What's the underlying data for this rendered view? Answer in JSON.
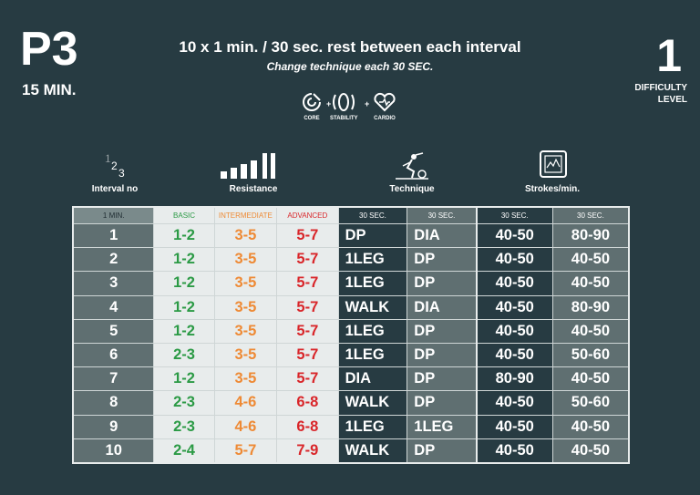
{
  "program": "P3",
  "duration": "15 MIN.",
  "headline": "10 x 1 min. / 30 sec. rest between each interval",
  "subline": "Change technique each 30 SEC.",
  "difficulty": {
    "level": "1",
    "label_line1": "DIFFICULTY",
    "label_line2": "LEVEL"
  },
  "categories": [
    {
      "name": "CORE",
      "icon": "core-icon"
    },
    {
      "name": "STABILITY",
      "icon": "stability-icon"
    },
    {
      "name": "CARDIO",
      "icon": "cardio-icon"
    }
  ],
  "plus": "+",
  "column_headers": {
    "interval": "Interval no",
    "resistance": "Resistance",
    "technique": "Technique",
    "strokes": "Strokes/min."
  },
  "table_headers": [
    "1 MIN.",
    "BASIC",
    "INTERMEDIATE",
    "ADVANCED",
    "30 SEC.",
    "30 SEC.",
    "30 SEC.",
    "30 SEC."
  ],
  "rows": [
    {
      "interval": "1",
      "basic": "1-2",
      "intermediate": "3-5",
      "advanced": "5-7",
      "tech1": "DP",
      "tech2": "DIA",
      "strokes1": "40-50",
      "strokes2": "80-90"
    },
    {
      "interval": "2",
      "basic": "1-2",
      "intermediate": "3-5",
      "advanced": "5-7",
      "tech1": "1LEG",
      "tech2": "DP",
      "strokes1": "40-50",
      "strokes2": "40-50"
    },
    {
      "interval": "3",
      "basic": "1-2",
      "intermediate": "3-5",
      "advanced": "5-7",
      "tech1": "1LEG",
      "tech2": "DP",
      "strokes1": "40-50",
      "strokes2": "40-50"
    },
    {
      "interval": "4",
      "basic": "1-2",
      "intermediate": "3-5",
      "advanced": "5-7",
      "tech1": "WALK",
      "tech2": "DIA",
      "strokes1": "40-50",
      "strokes2": "80-90"
    },
    {
      "interval": "5",
      "basic": "1-2",
      "intermediate": "3-5",
      "advanced": "5-7",
      "tech1": "1LEG",
      "tech2": "DP",
      "strokes1": "40-50",
      "strokes2": "40-50"
    },
    {
      "interval": "6",
      "basic": "2-3",
      "intermediate": "3-5",
      "advanced": "5-7",
      "tech1": "1LEG",
      "tech2": "DP",
      "strokes1": "40-50",
      "strokes2": "50-60"
    },
    {
      "interval": "7",
      "basic": "1-2",
      "intermediate": "3-5",
      "advanced": "5-7",
      "tech1": "DIA",
      "tech2": "DP",
      "strokes1": "80-90",
      "strokes2": "40-50"
    },
    {
      "interval": "8",
      "basic": "2-3",
      "intermediate": "4-6",
      "advanced": "6-8",
      "tech1": "WALK",
      "tech2": "DP",
      "strokes1": "40-50",
      "strokes2": "50-60"
    },
    {
      "interval": "9",
      "basic": "2-3",
      "intermediate": "4-6",
      "advanced": "6-8",
      "tech1": "1LEG",
      "tech2": "1LEG",
      "strokes1": "40-50",
      "strokes2": "40-50"
    },
    {
      "interval": "10",
      "basic": "2-4",
      "intermediate": "5-7",
      "advanced": "7-9",
      "tech1": "WALK",
      "tech2": "DP",
      "strokes1": "40-50",
      "strokes2": "40-50"
    }
  ],
  "colors": {
    "background": "#273b42",
    "basic": "#2b9a45",
    "intermediate": "#ee8a35",
    "advanced": "#d9262a",
    "panel_light": "#e8ecec",
    "panel_mid": "#5f6f71"
  }
}
